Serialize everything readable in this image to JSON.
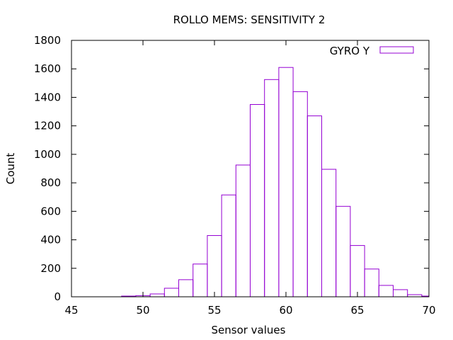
{
  "chart_data": {
    "type": "bar",
    "style": "histogram-outline",
    "title": "ROLLO MEMS: SENSITIVITY 2",
    "xlabel": "Sensor values",
    "ylabel": "Count",
    "xlim": [
      45,
      70
    ],
    "ylim": [
      0,
      1800
    ],
    "xticks": [
      45,
      50,
      55,
      60,
      65,
      70
    ],
    "yticks": [
      0,
      200,
      400,
      600,
      800,
      1000,
      1200,
      1400,
      1600,
      1800
    ],
    "grid": false,
    "legend_position": "top-right",
    "bin_width": 1,
    "series": [
      {
        "name": "GYRO Y",
        "color": "#9400d3",
        "bin_centers": [
          49,
          50,
          51,
          52,
          53,
          54,
          55,
          56,
          57,
          58,
          59,
          60,
          61,
          62,
          63,
          64,
          65,
          66,
          67,
          68,
          69,
          70
        ],
        "values": [
          5,
          8,
          20,
          60,
          120,
          230,
          430,
          715,
          925,
          1350,
          1525,
          1610,
          1440,
          1270,
          895,
          635,
          360,
          195,
          80,
          50,
          15,
          5
        ]
      }
    ]
  }
}
